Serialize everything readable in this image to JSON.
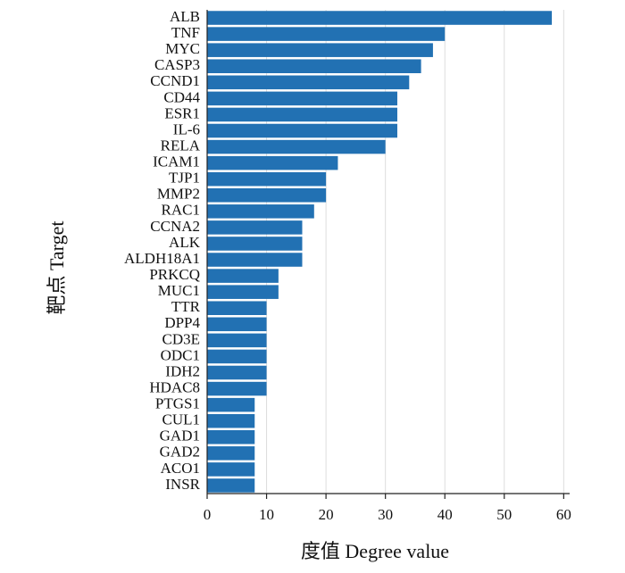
{
  "chart_data": {
    "type": "bar",
    "orientation": "horizontal",
    "x_label": "度值  Degree value",
    "y_label": "靶点 Target",
    "categories": [
      "ALB",
      "TNF",
      "MYC",
      "CASP3",
      "CCND1",
      "CD44",
      "ESR1",
      "IL-6",
      "RELA",
      "ICAM1",
      "TJP1",
      "MMP2",
      "RAC1",
      "CCNA2",
      "ALK",
      "ALDH18A1",
      "PRKCQ",
      "MUC1",
      "TTR",
      "DPP4",
      "CD3E",
      "ODC1",
      "IDH2",
      "HDAC8",
      "PTGS1",
      "CUL1",
      "GAD1",
      "GAD2",
      "ACO1",
      "INSR"
    ],
    "values": [
      58,
      40,
      38,
      36,
      34,
      32,
      32,
      32,
      30,
      22,
      20,
      20,
      18,
      16,
      16,
      16,
      12,
      12,
      10,
      10,
      10,
      10,
      10,
      10,
      8,
      8,
      8,
      8,
      8,
      8
    ],
    "color": "#2271b3",
    "xlim": [
      0,
      61
    ],
    "xticks": [
      0,
      10,
      20,
      30,
      40,
      50,
      60
    ],
    "grid": true
  }
}
